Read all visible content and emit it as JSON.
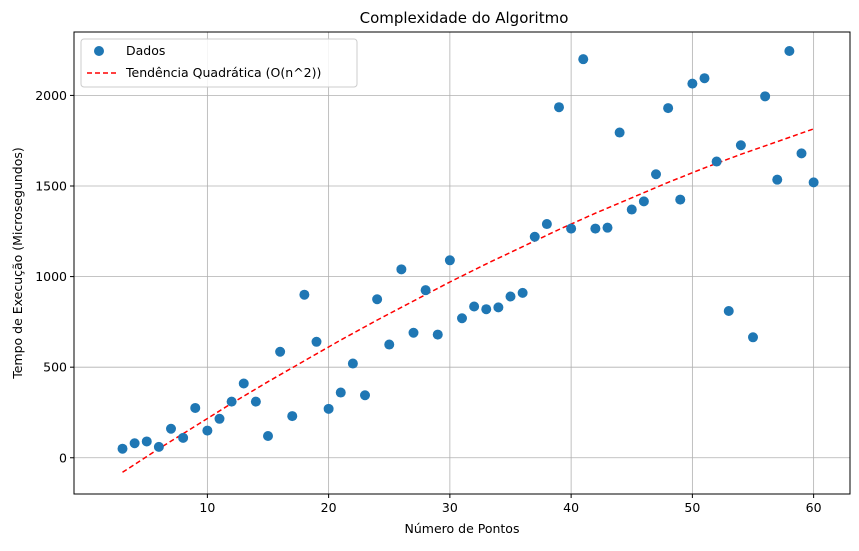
{
  "chart_data": {
    "type": "scatter",
    "title": "Complexidade do Algoritmo",
    "xlabel": "Número de Pontos",
    "ylabel": "Tempo de Execução (Microsegundos)",
    "xlim": [
      -1,
      63
    ],
    "ylim": [
      -200,
      2350
    ],
    "x_ticks": [
      10,
      20,
      30,
      40,
      50,
      60
    ],
    "y_ticks": [
      0,
      500,
      1000,
      1500,
      2000
    ],
    "grid": true,
    "legend_position": "top-left",
    "colors": {
      "points": "#1f77b4",
      "trend": "#ff0000",
      "grid": "#b0b0b0"
    },
    "series": [
      {
        "name": "Dados",
        "kind": "scatter",
        "x": [
          3,
          4,
          5,
          6,
          7,
          8,
          9,
          10,
          11,
          12,
          13,
          14,
          15,
          16,
          17,
          18,
          19,
          20,
          21,
          22,
          23,
          24,
          25,
          26,
          27,
          28,
          29,
          30,
          31,
          32,
          33,
          34,
          35,
          36,
          37,
          38,
          39,
          40,
          41,
          42,
          43,
          44,
          45,
          46,
          47,
          48,
          49,
          50,
          51,
          52,
          53,
          54,
          55,
          56,
          57,
          58,
          59,
          60
        ],
        "y": [
          50,
          80,
          90,
          60,
          160,
          110,
          275,
          150,
          215,
          310,
          410,
          310,
          120,
          585,
          230,
          900,
          640,
          270,
          360,
          520,
          345,
          875,
          625,
          1040,
          690,
          925,
          680,
          1090,
          770,
          835,
          820,
          830,
          890,
          910,
          1220,
          1290,
          1935,
          1265,
          2200,
          1265,
          1270,
          1795,
          1370,
          1415,
          1565,
          1930,
          1425,
          2065,
          2095,
          1635,
          810,
          1725,
          665,
          1995,
          1535,
          2245,
          1680,
          1520
        ]
      },
      {
        "name": "Tendência Quadrática (O(n^2))",
        "kind": "line",
        "style": "dashed",
        "x": [
          3,
          6,
          9,
          12,
          15,
          18,
          21,
          24,
          27,
          30,
          33,
          36,
          39,
          42,
          45,
          48,
          51,
          54,
          57,
          60
        ],
        "y": [
          -80,
          50,
          175,
          300,
          420,
          535,
          650,
          760,
          865,
          970,
          1070,
          1165,
          1260,
          1350,
          1435,
          1520,
          1600,
          1675,
          1745,
          1815
        ]
      }
    ]
  }
}
